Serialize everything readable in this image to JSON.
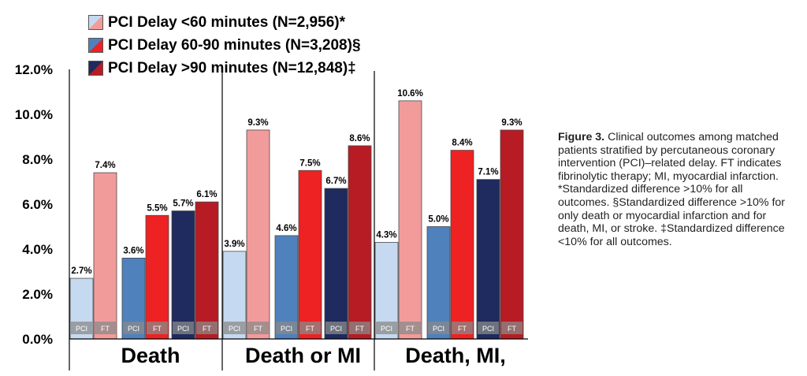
{
  "legend": [
    {
      "label": "PCI Delay <60 minutes (N=2,956)*",
      "colors": [
        "#c5d9f0",
        "#f29b9b"
      ]
    },
    {
      "label": "PCI Delay 60-90 minutes (N=3,208)§",
      "colors": [
        "#4f81bd",
        "#ee2222"
      ]
    },
    {
      "label": "PCI Delay >90 minutes (N=12,848)‡",
      "colors": [
        "#1f2a5e",
        "#b71c24"
      ]
    }
  ],
  "caption": {
    "lead": "Figure 3.",
    "text": "Clinical outcomes among matched patients stratified by percutaneous coronary intervention (PCI)–related delay. FT indicates fibrinolytic therapy; MI, myocardial infarction. *Standardized difference >10% for all outcomes. §Standardized difference >10% for only death or myocardial infarction and for death, MI, or stroke. ‡Standardized difference <10% for all outcomes."
  },
  "chart_data": {
    "type": "bar",
    "ylim": [
      0,
      12
    ],
    "yticks": [
      "0.0%",
      "2.0%",
      "4.0%",
      "6.0%",
      "8.0%",
      "10.0%",
      "12.0%"
    ],
    "groups": [
      {
        "name": "Death",
        "bars": [
          {
            "tag": "PCI",
            "value": 2.7,
            "label": "2.7%",
            "color": "#c5d9f0"
          },
          {
            "tag": "FT",
            "value": 7.4,
            "label": "7.4%",
            "color": "#f29b9b"
          },
          {
            "tag": "PCI",
            "value": 3.6,
            "label": "3.6%",
            "color": "#4f81bd"
          },
          {
            "tag": "FT",
            "value": 5.5,
            "label": "5.5%",
            "color": "#ee2222"
          },
          {
            "tag": "PCI",
            "value": 5.7,
            "label": "5.7%",
            "color": "#1f2a5e"
          },
          {
            "tag": "FT",
            "value": 6.1,
            "label": "6.1%",
            "color": "#b71c24"
          }
        ]
      },
      {
        "name": "Death or MI",
        "bars": [
          {
            "tag": "PCI",
            "value": 3.9,
            "label": "3.9%",
            "color": "#c5d9f0"
          },
          {
            "tag": "FT",
            "value": 9.3,
            "label": "9.3%",
            "color": "#f29b9b"
          },
          {
            "tag": "PCI",
            "value": 4.6,
            "label": "4.6%",
            "color": "#4f81bd"
          },
          {
            "tag": "FT",
            "value": 7.5,
            "label": "7.5%",
            "color": "#ee2222"
          },
          {
            "tag": "PCI",
            "value": 6.7,
            "label": "6.7%",
            "color": "#1f2a5e"
          },
          {
            "tag": "FT",
            "value": 8.6,
            "label": "8.6%",
            "color": "#b71c24"
          }
        ]
      },
      {
        "name": "Death, MI,",
        "bars": [
          {
            "tag": "PCI",
            "value": 4.3,
            "label": "4.3%",
            "color": "#c5d9f0"
          },
          {
            "tag": "FT",
            "value": 10.6,
            "label": "10.6%",
            "color": "#f29b9b"
          },
          {
            "tag": "PCI",
            "value": 5.0,
            "label": "5.0%",
            "color": "#4f81bd"
          },
          {
            "tag": "FT",
            "value": 8.4,
            "label": "8.4%",
            "color": "#ee2222"
          },
          {
            "tag": "PCI",
            "value": 7.1,
            "label": "7.1%",
            "color": "#1f2a5e"
          },
          {
            "tag": "FT",
            "value": 9.3,
            "label": "9.3%",
            "color": "#b71c24"
          }
        ]
      }
    ]
  }
}
